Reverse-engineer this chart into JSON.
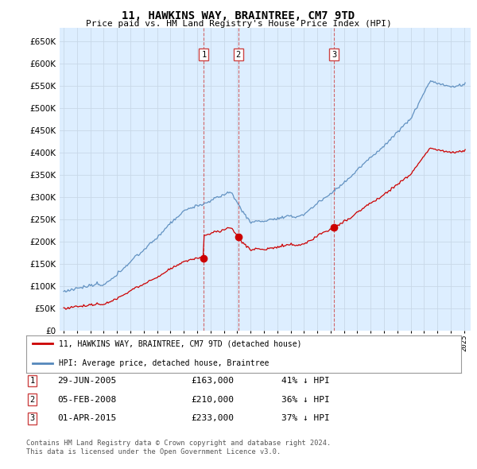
{
  "title": "11, HAWKINS WAY, BRAINTREE, CM7 9TD",
  "subtitle": "Price paid vs. HM Land Registry's House Price Index (HPI)",
  "legend_red": "11, HAWKINS WAY, BRAINTREE, CM7 9TD (detached house)",
  "legend_blue": "HPI: Average price, detached house, Braintree",
  "transactions": [
    {
      "num": 1,
      "date_x": 2005.5,
      "price": 163000,
      "label": "29-JUN-2005",
      "pct": "41% ↓ HPI"
    },
    {
      "num": 2,
      "date_x": 2008.09,
      "price": 210000,
      "label": "05-FEB-2008",
      "pct": "36% ↓ HPI"
    },
    {
      "num": 3,
      "date_x": 2015.25,
      "price": 233000,
      "label": "01-APR-2015",
      "pct": "37% ↓ HPI"
    }
  ],
  "ylim": [
    0,
    680000
  ],
  "yticks": [
    0,
    50000,
    100000,
    150000,
    200000,
    250000,
    300000,
    350000,
    400000,
    450000,
    500000,
    550000,
    600000,
    650000
  ],
  "xlim_start": 1994.7,
  "xlim_end": 2025.5,
  "grid_color": "#c8d8e8",
  "bg_color": "#ddeeff",
  "red_color": "#cc0000",
  "blue_color": "#5588bb",
  "vline_color": "#cc4444",
  "footnote": "Contains HM Land Registry data © Crown copyright and database right 2024.\nThis data is licensed under the Open Government Licence v3.0."
}
